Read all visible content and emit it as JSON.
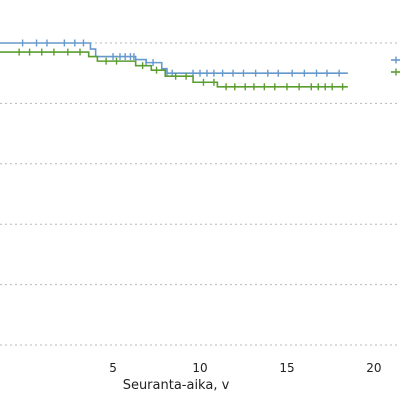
{
  "chart_data": {
    "type": "line",
    "title": "",
    "xlabel": "Seuranta-aika, v",
    "ylabel": "",
    "xlim": [
      -1.5,
      21.5
    ],
    "ylim": [
      0.0,
      1.0
    ],
    "x_ticks": [
      5,
      10,
      15,
      20
    ],
    "x_tick_labels": [
      "5",
      "10",
      "15",
      "20"
    ],
    "y_gridlines": [
      0.0,
      0.2,
      0.4,
      0.6,
      0.8,
      1.0
    ],
    "grid": true,
    "grid_style": "dotted-horizontal",
    "legend": "right (cropped, unlabeled)",
    "step": true,
    "colors": {
      "series_1": "#6699cc",
      "series_2": "#5a9e2f"
    },
    "series": [
      {
        "color": "#6699cc",
        "steps": [
          [
            -1.5,
            1.0
          ],
          [
            3.7,
            0.98
          ],
          [
            4.0,
            0.955
          ],
          [
            6.3,
            0.945
          ],
          [
            6.9,
            0.935
          ],
          [
            7.8,
            0.915
          ],
          [
            8.1,
            0.9
          ],
          [
            18.5,
            0.9
          ]
        ],
        "censor_x": [
          -0.2,
          0.6,
          1.2,
          2.2,
          2.8,
          3.3,
          5.0,
          5.4,
          5.7,
          6.0,
          6.2,
          6.9,
          7.3,
          8.1,
          8.4,
          9.6,
          10.0,
          10.4,
          10.8,
          11.3,
          11.9,
          12.5,
          13.2,
          13.9,
          14.5,
          15.3,
          16.0,
          16.7,
          17.3,
          18.0
        ]
      },
      {
        "color": "#5a9e2f",
        "steps": [
          [
            -1.5,
            0.97
          ],
          [
            3.6,
            0.955
          ],
          [
            4.1,
            0.94
          ],
          [
            6.3,
            0.925
          ],
          [
            7.2,
            0.91
          ],
          [
            8.0,
            0.89
          ],
          [
            9.6,
            0.87
          ],
          [
            11.0,
            0.855
          ],
          [
            18.5,
            0.855
          ]
        ],
        "censor_x": [
          -0.4,
          0.2,
          0.9,
          1.6,
          2.4,
          3.1,
          4.6,
          5.2,
          6.7,
          7.5,
          8.6,
          9.2,
          10.2,
          10.8,
          11.5,
          12.0,
          12.6,
          13.1,
          13.7,
          14.3,
          15.0,
          15.7,
          16.4,
          16.8,
          17.2,
          17.6,
          18.2
        ]
      }
    ],
    "legend_lines": [
      {
        "color": "#6699cc"
      },
      {
        "color": "#5a9e2f"
      }
    ]
  }
}
